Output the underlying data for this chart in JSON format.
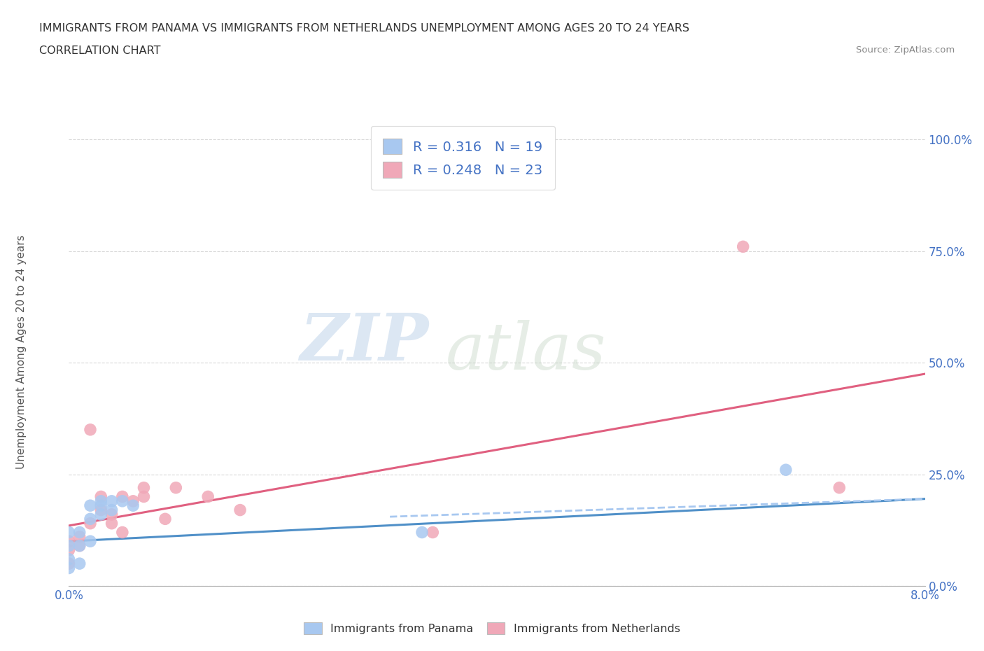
{
  "title_line1": "IMMIGRANTS FROM PANAMA VS IMMIGRANTS FROM NETHERLANDS UNEMPLOYMENT AMONG AGES 20 TO 24 YEARS",
  "title_line2": "CORRELATION CHART",
  "source": "Source: ZipAtlas.com",
  "ylabel": "Unemployment Among Ages 20 to 24 years",
  "xlim": [
    0.0,
    0.08
  ],
  "ylim": [
    0.0,
    1.05
  ],
  "x_ticks": [
    0.0,
    0.01,
    0.02,
    0.03,
    0.04,
    0.05,
    0.06,
    0.07,
    0.08
  ],
  "x_tick_labels": [
    "0.0%",
    "",
    "",
    "",
    "",
    "",
    "",
    "",
    "8.0%"
  ],
  "y_tick_labels": [
    "0.0%",
    "25.0%",
    "50.0%",
    "75.0%",
    "100.0%"
  ],
  "y_ticks": [
    0.0,
    0.25,
    0.5,
    0.75,
    1.0
  ],
  "panama_color": "#a8c8f0",
  "panama_line_color": "#5090c8",
  "netherlands_color": "#f0a8b8",
  "netherlands_line_color": "#e06080",
  "tick_color": "#4472c4",
  "panama_R": 0.316,
  "panama_N": 19,
  "netherlands_R": 0.248,
  "netherlands_N": 23,
  "watermark_zip": "ZIP",
  "watermark_atlas": "atlas",
  "panama_points_x": [
    0.0,
    0.0,
    0.0,
    0.0,
    0.001,
    0.001,
    0.001,
    0.002,
    0.002,
    0.002,
    0.003,
    0.003,
    0.003,
    0.004,
    0.004,
    0.005,
    0.006,
    0.033,
    0.067
  ],
  "panama_points_y": [
    0.04,
    0.06,
    0.09,
    0.12,
    0.05,
    0.09,
    0.12,
    0.1,
    0.15,
    0.18,
    0.16,
    0.19,
    0.18,
    0.17,
    0.19,
    0.19,
    0.18,
    0.12,
    0.26
  ],
  "netherlands_points_x": [
    0.0,
    0.0,
    0.0,
    0.001,
    0.001,
    0.002,
    0.002,
    0.003,
    0.003,
    0.004,
    0.004,
    0.005,
    0.005,
    0.006,
    0.007,
    0.007,
    0.009,
    0.01,
    0.013,
    0.016,
    0.034,
    0.063,
    0.072
  ],
  "netherlands_points_y": [
    0.05,
    0.08,
    0.1,
    0.09,
    0.11,
    0.35,
    0.14,
    0.2,
    0.17,
    0.14,
    0.16,
    0.2,
    0.12,
    0.19,
    0.2,
    0.22,
    0.15,
    0.22,
    0.2,
    0.17,
    0.12,
    0.76,
    0.22
  ],
  "pan_trend_x0": 0.0,
  "pan_trend_x1": 0.08,
  "pan_trend_y0": 0.1,
  "pan_trend_y1": 0.195,
  "neth_trend_x0": 0.0,
  "neth_trend_x1": 0.08,
  "neth_trend_y0": 0.135,
  "neth_trend_y1": 0.475,
  "background_color": "#ffffff",
  "grid_color": "#d8d8d8"
}
